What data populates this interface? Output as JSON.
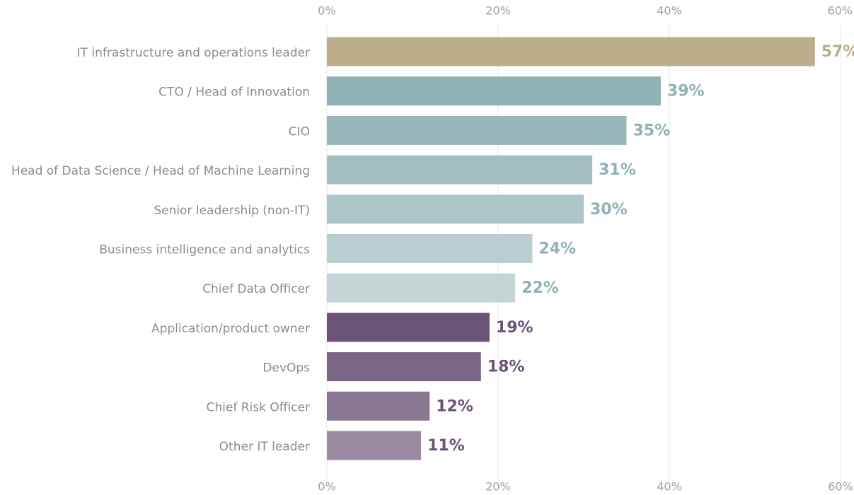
{
  "chart_data": {
    "type": "hbar",
    "categories": [
      "IT infrastructure and operations leader",
      "CTO / Head of Innovation",
      "CIO",
      "Head of Data Science / Head of Machine Learning",
      "Senior leadership (non-IT)",
      "Business intelligence and analytics",
      "Chief Data Officer",
      "Application/product owner",
      "DevOps",
      "Chief Risk Officer",
      "Other IT leader"
    ],
    "values": [
      57,
      39,
      35,
      31,
      30,
      24,
      22,
      19,
      18,
      12,
      11
    ],
    "value_labels": [
      "57%",
      "39%",
      "35%",
      "31%",
      "30%",
      "24%",
      "22%",
      "19%",
      "18%",
      "12%",
      "11%"
    ],
    "colors": [
      "#bcae8a",
      "#8fb2b5",
      "#99b7ba",
      "#a4bfc1",
      "#afc6c8",
      "#bacdcf",
      "#c5d5d7",
      "#6b5478",
      "#7b6687",
      "#8a7893",
      "#9a8aa2"
    ],
    "label_colors": [
      "#bcae8a",
      "#8fb2b5",
      "#8fb2b5",
      "#8fb2b5",
      "#8fb2b5",
      "#8fb2b5",
      "#8fb2b5",
      "#6b5478",
      "#6b5478",
      "#6b5478",
      "#6b5478"
    ],
    "xlim": [
      0,
      60
    ],
    "xticks": [
      {
        "value": 0,
        "label": "0%"
      },
      {
        "value": 20,
        "label": "20%"
      },
      {
        "value": 40,
        "label": "40%"
      },
      {
        "value": 60,
        "label": "60%"
      }
    ],
    "grid": true
  }
}
